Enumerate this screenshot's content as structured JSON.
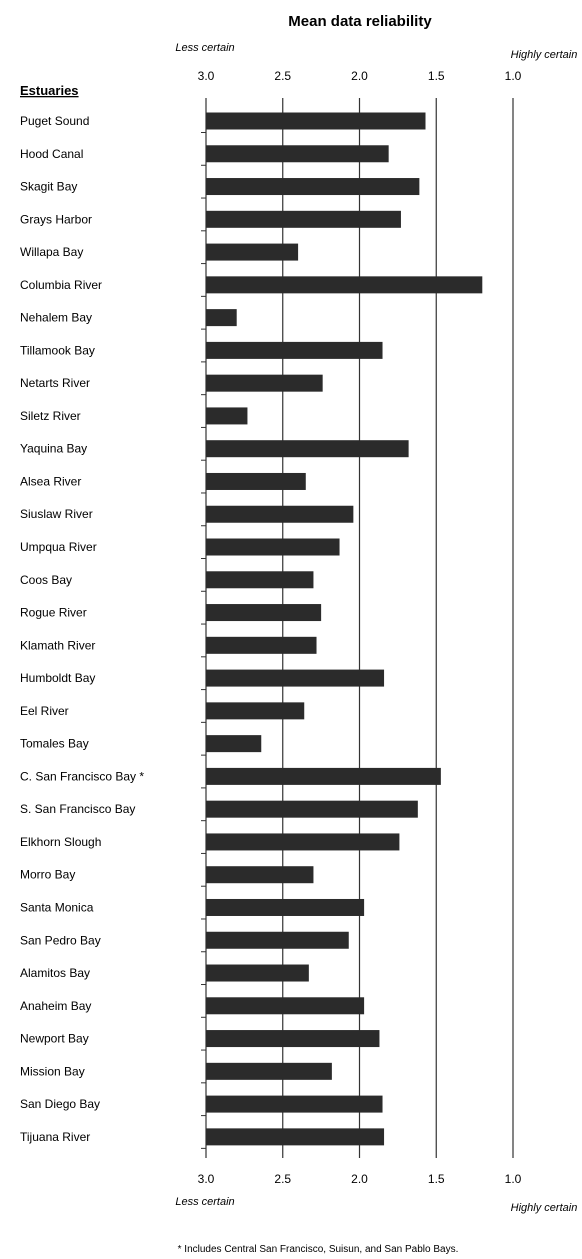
{
  "chart_data": {
    "type": "bar",
    "orientation": "horizontal",
    "title": "Mean data reliability",
    "category_header": "Estuaries",
    "x_axis": {
      "min": 1.0,
      "max": 3.0,
      "reversed": true,
      "ticks": [
        "3.0",
        "2.5",
        "2.0",
        "1.5",
        "1.0"
      ],
      "tick_values": [
        3.0,
        2.5,
        2.0,
        1.5,
        1.0
      ],
      "left_label": "Less certain",
      "right_label": "Highly certain"
    },
    "gridlines": true,
    "bar_color": "#2b2b2b",
    "categories": [
      "Puget Sound",
      "Hood Canal",
      "Skagit Bay",
      "Grays Harbor",
      "Willapa Bay",
      "Columbia River",
      "Nehalem Bay",
      "Tillamook Bay",
      "Netarts River",
      "Siletz River",
      "Yaquina Bay",
      "Alsea River",
      "Siuslaw River",
      "Umpqua River",
      "Coos Bay",
      "Rogue River",
      "Klamath River",
      "Humboldt Bay",
      "Eel River",
      "Tomales Bay",
      "C. San Francisco Bay *",
      "S. San Francisco Bay",
      "Elkhorn Slough",
      "Morro Bay",
      "Santa Monica",
      "San Pedro Bay",
      "Alamitos Bay",
      "Anaheim Bay",
      "Newport Bay",
      "Mission Bay",
      "San Diego Bay",
      "Tijuana River"
    ],
    "values": [
      1.57,
      1.81,
      1.61,
      1.73,
      2.4,
      1.2,
      2.8,
      1.85,
      2.24,
      2.73,
      1.68,
      2.35,
      2.04,
      2.13,
      2.3,
      2.25,
      2.28,
      1.84,
      2.36,
      2.64,
      1.47,
      1.62,
      1.74,
      2.3,
      1.97,
      2.07,
      2.33,
      1.97,
      1.87,
      2.18,
      1.85,
      1.84
    ],
    "footnote": "* Includes Central San Francisco, Suisun, and San Pablo Bays."
  }
}
